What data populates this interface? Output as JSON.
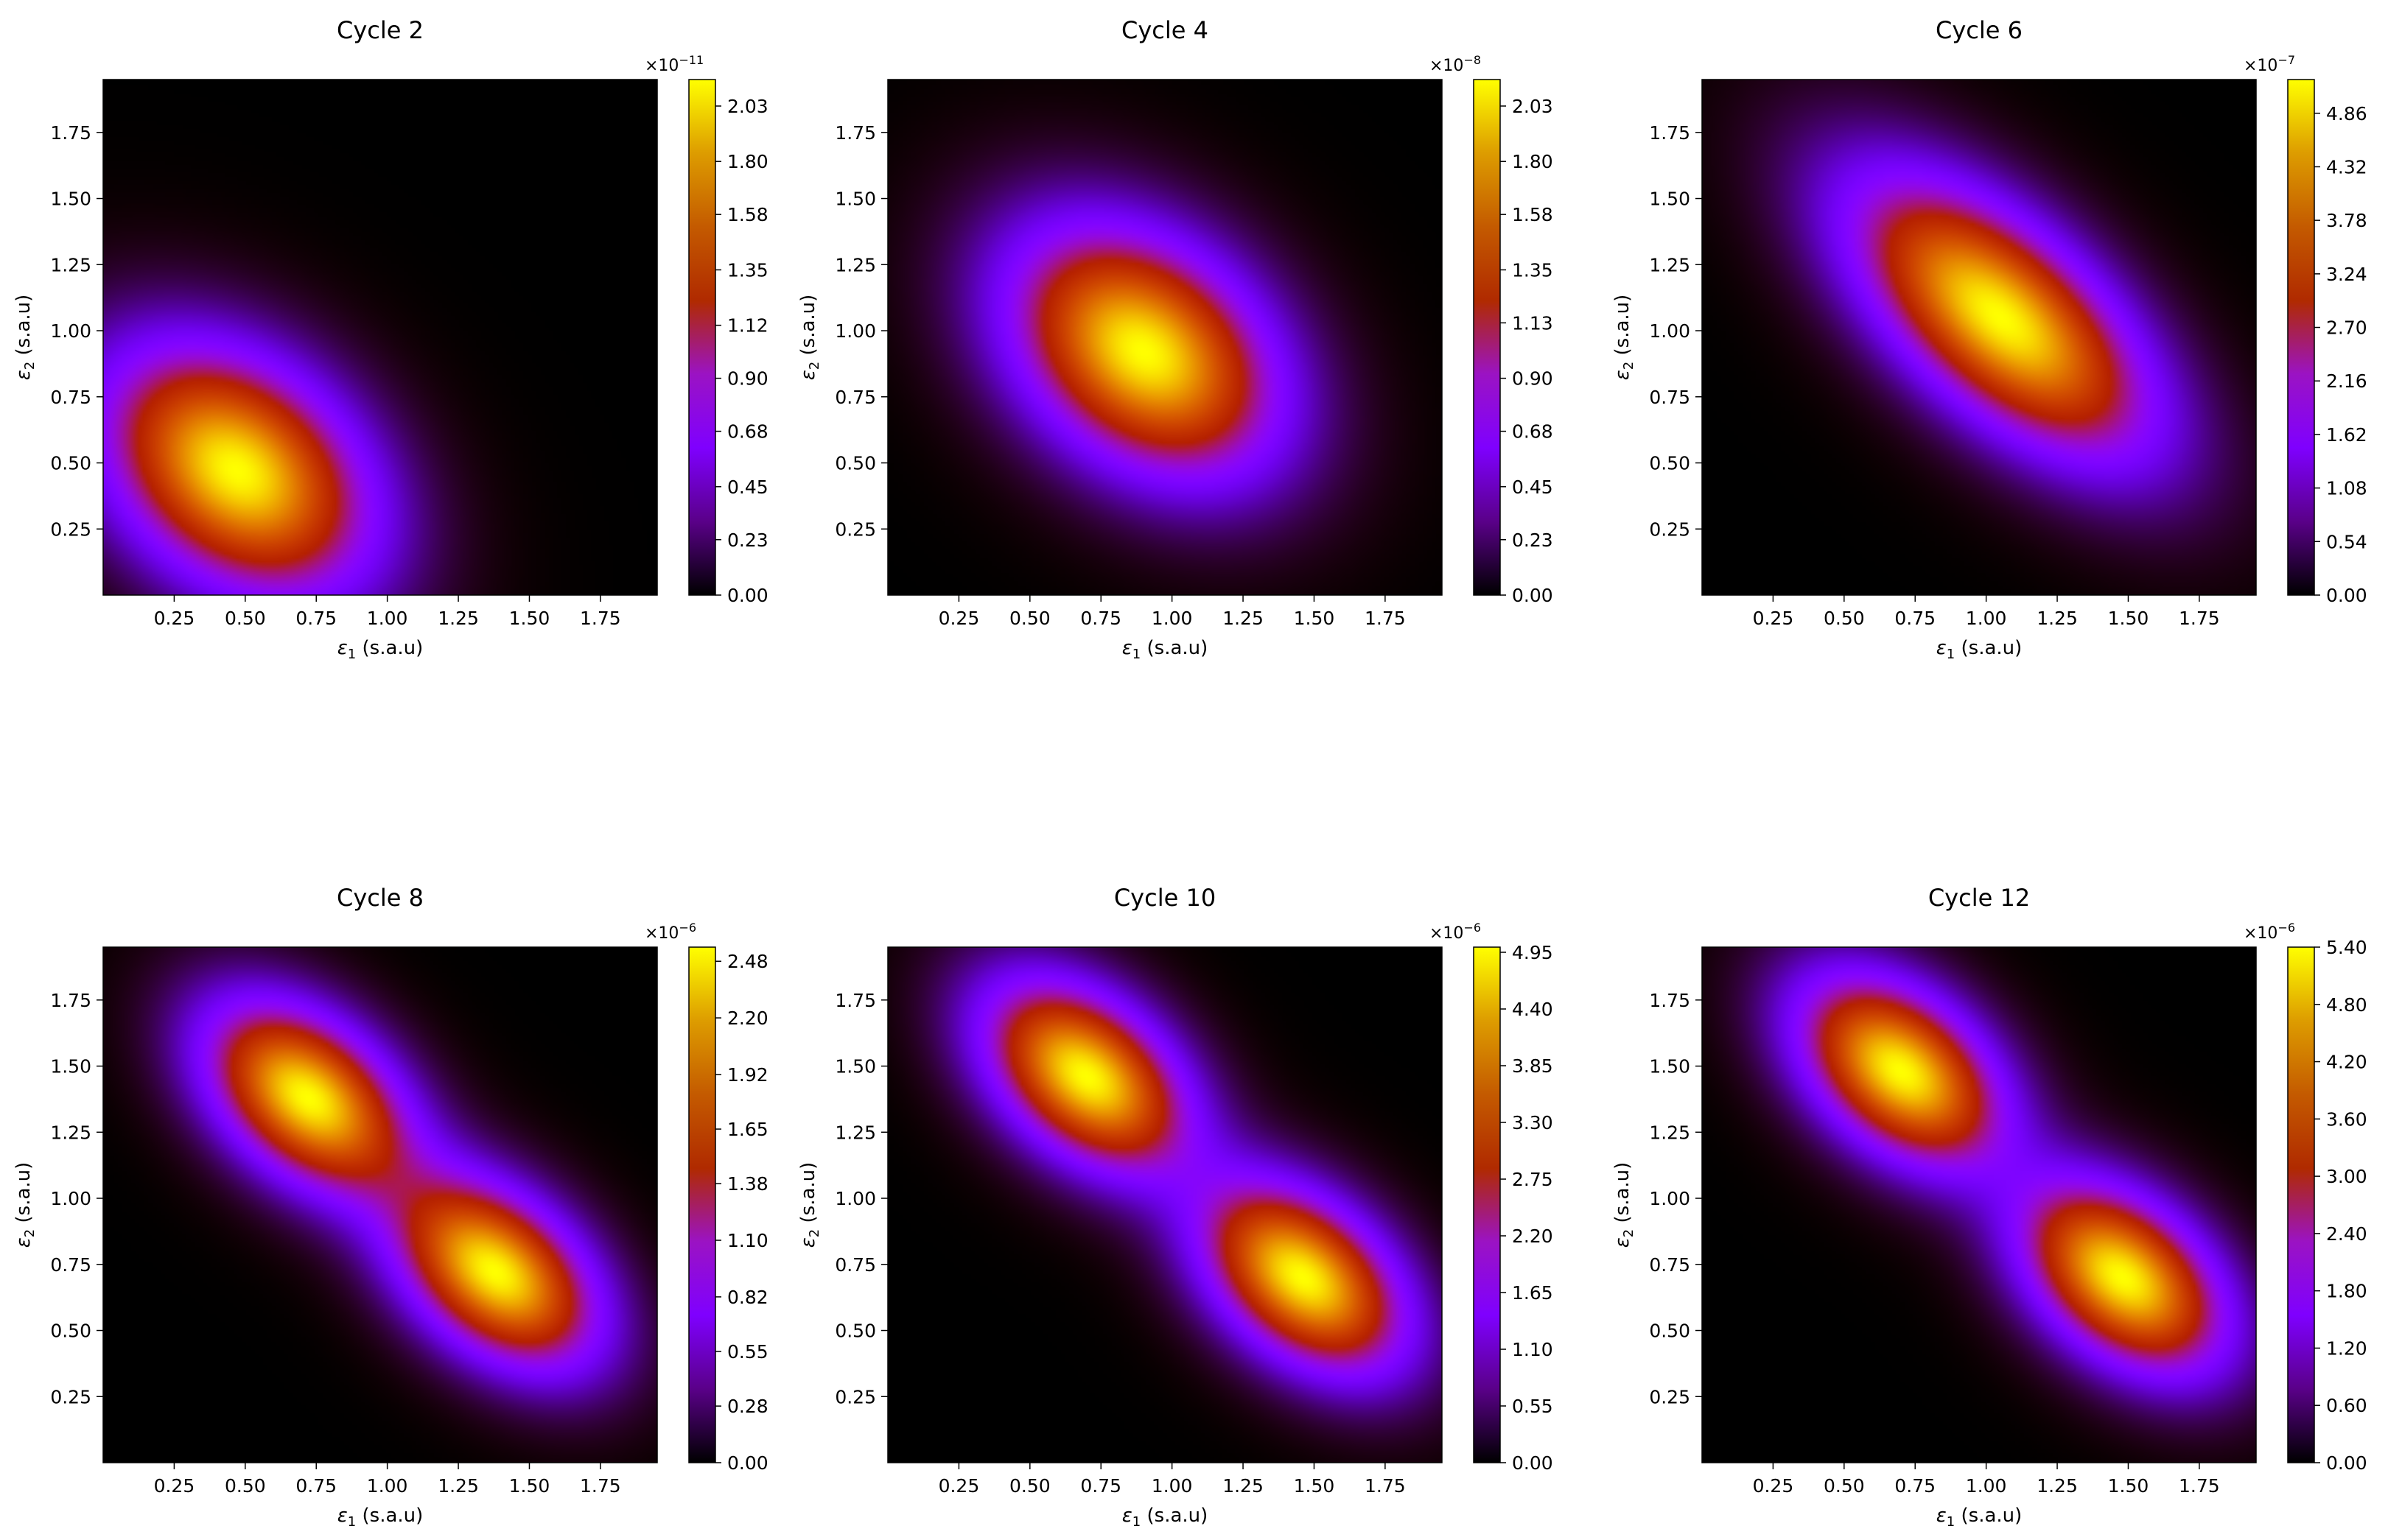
{
  "figure": {
    "xlabel_symbol": "ε",
    "xlabel_sub": "1",
    "xlabel_unit": " (s.a.u)",
    "ylabel_symbol": "ε",
    "ylabel_sub": "2",
    "ylabel_unit": " (s.a.u)",
    "colormap": "gnuplot",
    "colormap_stops": [
      "#000000",
      "#5a0089",
      "#7f00ff",
      "#9b13c3",
      "#b02a00",
      "#c45a00",
      "#dd9c00",
      "#ffff00"
    ]
  },
  "chart_data": [
    {
      "type": "heatmap",
      "title": "Cycle 2",
      "xlim": [
        0.0,
        1.95
      ],
      "ylim": [
        0.0,
        1.95
      ],
      "xticks": [
        "0.25",
        "0.50",
        "0.75",
        "1.00",
        "1.25",
        "1.50",
        "1.75"
      ],
      "yticks": [
        "0.25",
        "0.50",
        "0.75",
        "1.00",
        "1.25",
        "1.50",
        "1.75"
      ],
      "colorbar": {
        "multiplier_base": "×10",
        "multiplier_exp": "−11",
        "max": 2.14,
        "ticks": [
          "0.00",
          "0.23",
          "0.45",
          "0.68",
          "0.90",
          "1.12",
          "1.35",
          "1.58",
          "1.80",
          "2.03"
        ]
      },
      "peaks": [
        {
          "x": 0.47,
          "y": 0.47,
          "amp": 2.14
        }
      ]
    },
    {
      "type": "heatmap",
      "title": "Cycle 4",
      "xlim": [
        0.0,
        1.95
      ],
      "ylim": [
        0.0,
        1.95
      ],
      "xticks": [
        "0.25",
        "0.50",
        "0.75",
        "1.00",
        "1.25",
        "1.50",
        "1.75"
      ],
      "yticks": [
        "0.25",
        "0.50",
        "0.75",
        "1.00",
        "1.25",
        "1.50",
        "1.75"
      ],
      "colorbar": {
        "multiplier_base": "×10",
        "multiplier_exp": "−8",
        "max": 2.14,
        "ticks": [
          "0.00",
          "0.23",
          "0.45",
          "0.68",
          "0.90",
          "1.13",
          "1.35",
          "1.58",
          "1.80",
          "2.03"
        ]
      },
      "peaks": [
        {
          "x": 0.9,
          "y": 0.92,
          "amp": 2.14
        }
      ]
    },
    {
      "type": "heatmap",
      "title": "Cycle 6",
      "xlim": [
        0.0,
        1.95
      ],
      "ylim": [
        0.0,
        1.95
      ],
      "xticks": [
        "0.25",
        "0.50",
        "0.75",
        "1.00",
        "1.25",
        "1.50",
        "1.75"
      ],
      "yticks": [
        "0.25",
        "0.50",
        "0.75",
        "1.00",
        "1.25",
        "1.50",
        "1.75"
      ],
      "colorbar": {
        "multiplier_base": "×10",
        "multiplier_exp": "−7",
        "max": 5.2,
        "ticks": [
          "0.00",
          "0.54",
          "1.08",
          "1.62",
          "2.16",
          "2.70",
          "3.24",
          "3.78",
          "4.32",
          "4.86"
        ]
      },
      "peaks": [
        {
          "x": 1.05,
          "y": 1.05,
          "amp": 5.2
        }
      ]
    },
    {
      "type": "heatmap",
      "title": "Cycle 8",
      "xlim": [
        0.0,
        1.95
      ],
      "ylim": [
        0.0,
        1.95
      ],
      "xticks": [
        "0.25",
        "0.50",
        "0.75",
        "1.00",
        "1.25",
        "1.50",
        "1.75"
      ],
      "yticks": [
        "0.25",
        "0.50",
        "0.75",
        "1.00",
        "1.25",
        "1.50",
        "1.75"
      ],
      "colorbar": {
        "multiplier_base": "×10",
        "multiplier_exp": "−6",
        "max": 2.55,
        "ticks": [
          "0.00",
          "0.28",
          "0.55",
          "0.82",
          "1.10",
          "1.38",
          "1.65",
          "1.92",
          "2.20",
          "2.48"
        ]
      },
      "peaks": [
        {
          "x": 0.72,
          "y": 1.38,
          "amp": 2.55
        },
        {
          "x": 1.38,
          "y": 0.72,
          "amp": 2.55
        }
      ]
    },
    {
      "type": "heatmap",
      "title": "Cycle 10",
      "xlim": [
        0.0,
        1.95
      ],
      "ylim": [
        0.0,
        1.95
      ],
      "xticks": [
        "0.25",
        "0.50",
        "0.75",
        "1.00",
        "1.25",
        "1.50",
        "1.75"
      ],
      "yticks": [
        "0.25",
        "0.50",
        "0.75",
        "1.00",
        "1.25",
        "1.50",
        "1.75"
      ],
      "colorbar": {
        "multiplier_base": "×10",
        "multiplier_exp": "−6",
        "max": 5.0,
        "ticks": [
          "0.00",
          "0.55",
          "1.10",
          "1.65",
          "2.20",
          "2.75",
          "3.30",
          "3.85",
          "4.40",
          "4.95"
        ]
      },
      "peaks": [
        {
          "x": 0.7,
          "y": 1.46,
          "amp": 5.0
        },
        {
          "x": 1.46,
          "y": 0.7,
          "amp": 5.0
        }
      ]
    },
    {
      "type": "heatmap",
      "title": "Cycle 12",
      "xlim": [
        0.0,
        1.95
      ],
      "ylim": [
        0.0,
        1.95
      ],
      "xticks": [
        "0.25",
        "0.50",
        "0.75",
        "1.00",
        "1.25",
        "1.50",
        "1.75"
      ],
      "yticks": [
        "0.25",
        "0.50",
        "0.75",
        "1.00",
        "1.25",
        "1.50",
        "1.75"
      ],
      "colorbar": {
        "multiplier_base": "×10",
        "multiplier_exp": "−6",
        "max": 5.4,
        "ticks": [
          "0.00",
          "0.60",
          "1.20",
          "1.80",
          "2.40",
          "3.00",
          "3.60",
          "4.20",
          "4.80",
          "5.40"
        ]
      },
      "peaks": [
        {
          "x": 0.7,
          "y": 1.48,
          "amp": 5.4
        },
        {
          "x": 1.48,
          "y": 0.7,
          "amp": 5.4
        }
      ]
    }
  ]
}
